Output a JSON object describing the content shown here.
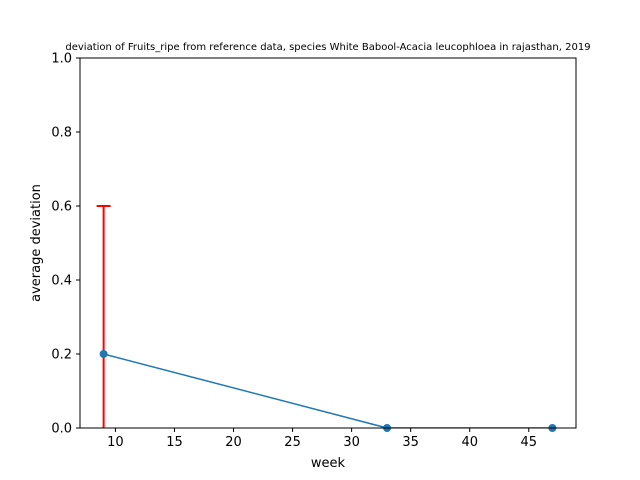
{
  "chart_data": {
    "type": "line",
    "title": "deviation of Fruits_ripe from reference data, species White Babool-Acacia leucophloea in rajasthan, 2019",
    "xlabel": "week",
    "ylabel": "average deviation",
    "xlim": [
      7,
      49
    ],
    "ylim": [
      0,
      1
    ],
    "xticks": [
      10,
      15,
      20,
      25,
      30,
      35,
      40,
      45
    ],
    "yticks": [
      0.0,
      0.2,
      0.4,
      0.6,
      0.8,
      1.0
    ],
    "ytick_labels": [
      "0.0",
      "0.2",
      "0.4",
      "0.6",
      "0.8",
      "1.0"
    ],
    "grid": false,
    "series": [
      {
        "x": [
          9,
          33,
          47
        ],
        "y": [
          0.2,
          0.0,
          0.0
        ],
        "color": "#1f77b4",
        "marker": "circle"
      }
    ],
    "error_bars": [
      {
        "x": 9,
        "y": 0.2,
        "lower": 0.2,
        "upper": 0.4,
        "color": "#ff0000"
      }
    ]
  }
}
